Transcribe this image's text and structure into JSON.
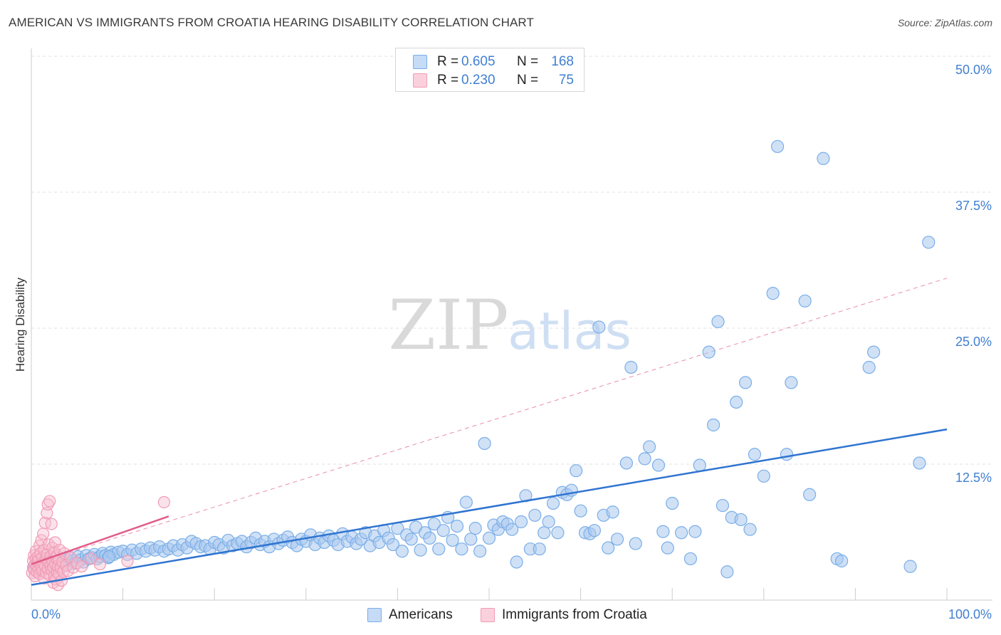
{
  "title": "AMERICAN VS IMMIGRANTS FROM CROATIA HEARING DISABILITY CORRELATION CHART",
  "source": "Source: ZipAtlas.com",
  "watermark": {
    "zip": "ZIP",
    "atlas": "atlas"
  },
  "colors": {
    "americans": "#7aaee8",
    "americans_line": "#2f74d0",
    "croatia": "#f19bb6",
    "croatia_line": "#e05c8a",
    "tick_label": "#3f7fd1",
    "grid": "#e2e2e2"
  },
  "legend": {
    "row1": {
      "r_label": "R =",
      "r_value": "0.605",
      "n_label": "N =",
      "n_value": "168"
    },
    "row2": {
      "r_label": "R =",
      "r_value": "0.230",
      "n_label": "N =",
      "n_value": "75"
    }
  },
  "bottom_legend": {
    "americans": "Americans",
    "croatia": "Immigrants from Croatia"
  },
  "chart_data": {
    "type": "scatter",
    "xlabel": "",
    "ylabel": "Hearing Disability",
    "xlim": [
      0,
      100
    ],
    "ylim": [
      0,
      50
    ],
    "x_tick_labels": [
      "0.0%",
      "100.0%"
    ],
    "y_ticks": [
      12.5,
      25.0,
      37.5,
      50.0
    ],
    "y_tick_labels": [
      "12.5%",
      "25.0%",
      "37.5%",
      "50.0%"
    ],
    "grid": "horizontal dashed",
    "legend_position": "top-center",
    "series": [
      {
        "name": "Americans",
        "r": 0.605,
        "n": 168,
        "trend": {
          "x": [
            0,
            100
          ],
          "y": [
            1.4,
            15.7
          ],
          "style": "solid"
        },
        "points": [
          [
            0.3,
            3.0
          ],
          [
            0.6,
            3.2
          ],
          [
            0.9,
            2.8
          ],
          [
            1.2,
            3.5
          ],
          [
            1.5,
            3.3
          ],
          [
            1.8,
            3.1
          ],
          [
            2.1,
            3.6
          ],
          [
            2.4,
            3.4
          ],
          [
            2.7,
            3.0
          ],
          [
            3.0,
            3.7
          ],
          [
            3.3,
            3.5
          ],
          [
            3.6,
            3.8
          ],
          [
            3.9,
            3.2
          ],
          [
            4.2,
            3.9
          ],
          [
            4.5,
            3.6
          ],
          [
            4.8,
            3.4
          ],
          [
            5.1,
            4.0
          ],
          [
            5.4,
            3.7
          ],
          [
            5.7,
            3.5
          ],
          [
            6.0,
            4.1
          ],
          [
            6.3,
            3.8
          ],
          [
            6.6,
            3.9
          ],
          [
            6.9,
            4.2
          ],
          [
            7.2,
            3.8
          ],
          [
            7.5,
            4.0
          ],
          [
            7.8,
            4.3
          ],
          [
            8.1,
            4.1
          ],
          [
            8.4,
            3.9
          ],
          [
            8.7,
            4.4
          ],
          [
            9.0,
            4.2
          ],
          [
            9.5,
            4.4
          ],
          [
            10.0,
            4.5
          ],
          [
            10.5,
            4.2
          ],
          [
            11.0,
            4.6
          ],
          [
            11.5,
            4.3
          ],
          [
            12.0,
            4.7
          ],
          [
            12.5,
            4.5
          ],
          [
            13.0,
            4.8
          ],
          [
            13.5,
            4.6
          ],
          [
            14.0,
            4.9
          ],
          [
            14.5,
            4.5
          ],
          [
            15.0,
            4.7
          ],
          [
            15.5,
            5.0
          ],
          [
            16.0,
            4.6
          ],
          [
            16.5,
            5.1
          ],
          [
            17.0,
            4.8
          ],
          [
            17.5,
            5.4
          ],
          [
            18.0,
            5.2
          ],
          [
            18.5,
            4.9
          ],
          [
            19.0,
            5.0
          ],
          [
            19.5,
            4.7
          ],
          [
            20.0,
            5.3
          ],
          [
            20.5,
            5.1
          ],
          [
            21.0,
            4.8
          ],
          [
            21.5,
            5.5
          ],
          [
            22.0,
            5.0
          ],
          [
            22.5,
            5.2
          ],
          [
            23.0,
            5.4
          ],
          [
            23.5,
            4.9
          ],
          [
            24.0,
            5.3
          ],
          [
            24.5,
            5.7
          ],
          [
            25.0,
            5.1
          ],
          [
            25.5,
            5.4
          ],
          [
            26.0,
            4.9
          ],
          [
            26.5,
            5.6
          ],
          [
            27.0,
            5.2
          ],
          [
            27.5,
            5.5
          ],
          [
            28.0,
            5.8
          ],
          [
            28.5,
            5.3
          ],
          [
            29.0,
            5.0
          ],
          [
            29.5,
            5.6
          ],
          [
            30.0,
            5.4
          ],
          [
            30.5,
            6.0
          ],
          [
            31.0,
            5.1
          ],
          [
            31.5,
            5.7
          ],
          [
            32.0,
            5.3
          ],
          [
            32.5,
            5.9
          ],
          [
            33.0,
            5.5
          ],
          [
            33.5,
            5.1
          ],
          [
            34.0,
            6.1
          ],
          [
            34.5,
            5.4
          ],
          [
            35.0,
            5.8
          ],
          [
            35.5,
            5.2
          ],
          [
            36.0,
            5.6
          ],
          [
            36.5,
            6.2
          ],
          [
            37.0,
            5.0
          ],
          [
            37.5,
            5.9
          ],
          [
            38.0,
            5.3
          ],
          [
            38.5,
            6.4
          ],
          [
            39.0,
            5.7
          ],
          [
            39.5,
            5.1
          ],
          [
            40.0,
            6.6
          ],
          [
            40.5,
            4.5
          ],
          [
            41.0,
            6.0
          ],
          [
            41.5,
            5.6
          ],
          [
            42.0,
            6.7
          ],
          [
            42.5,
            4.6
          ],
          [
            43.0,
            6.2
          ],
          [
            43.5,
            5.7
          ],
          [
            44.0,
            7.0
          ],
          [
            44.5,
            4.7
          ],
          [
            45.0,
            6.4
          ],
          [
            45.5,
            7.6
          ],
          [
            46.0,
            5.5
          ],
          [
            46.5,
            6.8
          ],
          [
            47.0,
            4.7
          ],
          [
            47.5,
            9.0
          ],
          [
            48.0,
            5.6
          ],
          [
            48.5,
            6.6
          ],
          [
            49.0,
            4.5
          ],
          [
            49.5,
            14.4
          ],
          [
            50.0,
            5.7
          ],
          [
            50.5,
            6.9
          ],
          [
            51.0,
            6.5
          ],
          [
            51.5,
            7.2
          ],
          [
            52.0,
            7.0
          ],
          [
            52.5,
            6.5
          ],
          [
            53.0,
            3.5
          ],
          [
            53.5,
            7.2
          ],
          [
            54.0,
            9.6
          ],
          [
            54.5,
            4.7
          ],
          [
            55.0,
            7.8
          ],
          [
            55.5,
            4.7
          ],
          [
            56.0,
            6.2
          ],
          [
            56.5,
            7.2
          ],
          [
            57.0,
            8.9
          ],
          [
            57.5,
            6.2
          ],
          [
            58.0,
            9.9
          ],
          [
            58.5,
            9.7
          ],
          [
            59.0,
            10.1
          ],
          [
            59.5,
            11.9
          ],
          [
            60.0,
            8.2
          ],
          [
            60.5,
            6.2
          ],
          [
            61.0,
            6.1
          ],
          [
            61.5,
            6.4
          ],
          [
            62.0,
            25.1
          ],
          [
            62.5,
            7.8
          ],
          [
            63.0,
            4.8
          ],
          [
            63.5,
            8.1
          ],
          [
            64.0,
            5.6
          ],
          [
            65.0,
            12.6
          ],
          [
            65.5,
            21.4
          ],
          [
            66.0,
            5.2
          ],
          [
            67.0,
            13.0
          ],
          [
            67.5,
            14.1
          ],
          [
            68.5,
            12.4
          ],
          [
            69.0,
            6.3
          ],
          [
            69.5,
            4.8
          ],
          [
            70.0,
            8.9
          ],
          [
            71.0,
            6.2
          ],
          [
            72.0,
            3.8
          ],
          [
            72.5,
            6.3
          ],
          [
            73.0,
            12.4
          ],
          [
            74.0,
            22.8
          ],
          [
            74.5,
            16.1
          ],
          [
            75.0,
            25.6
          ],
          [
            75.5,
            8.7
          ],
          [
            76.0,
            2.6
          ],
          [
            76.5,
            7.6
          ],
          [
            77.0,
            18.2
          ],
          [
            77.5,
            7.4
          ],
          [
            78.0,
            20.0
          ],
          [
            78.5,
            6.5
          ],
          [
            79.0,
            13.4
          ],
          [
            80.0,
            11.4
          ],
          [
            81.0,
            28.2
          ],
          [
            81.5,
            41.7
          ],
          [
            82.5,
            13.4
          ],
          [
            83.0,
            20.0
          ],
          [
            84.5,
            27.5
          ],
          [
            85.0,
            9.7
          ],
          [
            86.5,
            40.6
          ],
          [
            88.0,
            3.8
          ],
          [
            88.5,
            3.6
          ],
          [
            91.5,
            21.4
          ],
          [
            92.0,
            22.8
          ],
          [
            96.0,
            3.1
          ],
          [
            97.0,
            12.6
          ],
          [
            98.0,
            32.9
          ],
          [
            8.5,
            4.0
          ]
        ]
      },
      {
        "name": "Immigrants from Croatia",
        "r": 0.23,
        "n": 75,
        "trend_solid": {
          "x": [
            0,
            15
          ],
          "y": [
            3.3,
            7.7
          ]
        },
        "trend_dashed": {
          "x": [
            0,
            100
          ],
          "y": [
            3.3,
            29.6
          ]
        },
        "points": [
          [
            0.1,
            2.5
          ],
          [
            0.2,
            3.0
          ],
          [
            0.2,
            3.6
          ],
          [
            0.3,
            2.8
          ],
          [
            0.3,
            4.1
          ],
          [
            0.4,
            3.3
          ],
          [
            0.4,
            2.2
          ],
          [
            0.5,
            3.8
          ],
          [
            0.5,
            4.5
          ],
          [
            0.6,
            3.1
          ],
          [
            0.6,
            2.6
          ],
          [
            0.7,
            3.5
          ],
          [
            0.7,
            4.0
          ],
          [
            0.8,
            2.9
          ],
          [
            0.8,
            3.7
          ],
          [
            0.9,
            5.0
          ],
          [
            0.9,
            2.4
          ],
          [
            1.0,
            3.2
          ],
          [
            1.0,
            4.3
          ],
          [
            1.1,
            3.0
          ],
          [
            1.1,
            5.5
          ],
          [
            1.2,
            2.7
          ],
          [
            1.2,
            3.9
          ],
          [
            1.3,
            6.1
          ],
          [
            1.3,
            3.4
          ],
          [
            1.4,
            2.0
          ],
          [
            1.4,
            4.6
          ],
          [
            1.5,
            3.1
          ],
          [
            1.5,
            7.1
          ],
          [
            1.6,
            2.5
          ],
          [
            1.6,
            3.8
          ],
          [
            1.7,
            8.0
          ],
          [
            1.7,
            4.2
          ],
          [
            1.8,
            2.9
          ],
          [
            1.8,
            8.8
          ],
          [
            1.9,
            3.5
          ],
          [
            1.9,
            5.1
          ],
          [
            2.0,
            9.1
          ],
          [
            2.0,
            2.3
          ],
          [
            2.1,
            4.0
          ],
          [
            2.1,
            3.2
          ],
          [
            2.2,
            7.0
          ],
          [
            2.2,
            2.8
          ],
          [
            2.3,
            4.8
          ],
          [
            2.3,
            3.6
          ],
          [
            2.4,
            1.6
          ],
          [
            2.4,
            3.0
          ],
          [
            2.5,
            4.4
          ],
          [
            2.5,
            2.2
          ],
          [
            2.6,
            3.3
          ],
          [
            2.6,
            5.3
          ],
          [
            2.7,
            1.9
          ],
          [
            2.7,
            3.9
          ],
          [
            2.8,
            2.6
          ],
          [
            2.8,
            4.1
          ],
          [
            2.9,
            3.1
          ],
          [
            2.9,
            1.4
          ],
          [
            3.0,
            3.7
          ],
          [
            3.0,
            2.4
          ],
          [
            3.1,
            4.6
          ],
          [
            3.2,
            3.0
          ],
          [
            3.3,
            1.8
          ],
          [
            3.4,
            3.5
          ],
          [
            3.5,
            2.6
          ],
          [
            3.6,
            4.3
          ],
          [
            3.8,
            3.2
          ],
          [
            4.0,
            2.7
          ],
          [
            4.3,
            3.9
          ],
          [
            4.6,
            3.0
          ],
          [
            5.0,
            3.4
          ],
          [
            5.5,
            3.1
          ],
          [
            6.5,
            3.8
          ],
          [
            7.5,
            3.3
          ],
          [
            10.5,
            3.6
          ],
          [
            14.5,
            9.0
          ]
        ]
      }
    ]
  }
}
